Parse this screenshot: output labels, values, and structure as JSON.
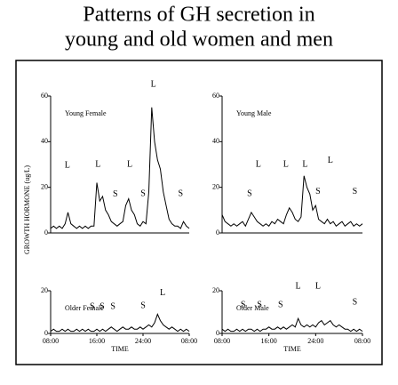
{
  "title_lines": [
    "Patterns of GH secretion in",
    "young and old women and men"
  ],
  "y_label": "GROWTH HORMONE (ug/L)",
  "chart_data": [
    {
      "type": "line",
      "title": "Young Female",
      "xlim": [
        8,
        32
      ],
      "ylim": [
        0,
        60
      ],
      "yticks": [
        0,
        20,
        40,
        60
      ],
      "x": [
        8,
        8.5,
        9,
        9.5,
        10,
        10.5,
        11,
        11.5,
        12,
        12.5,
        13,
        13.5,
        14,
        14.5,
        15,
        15.5,
        16,
        16.5,
        17,
        17.5,
        18,
        18.5,
        19,
        19.5,
        20,
        20.5,
        21,
        21.5,
        22,
        22.5,
        23,
        23.5,
        24,
        24.5,
        25,
        25.5,
        26,
        26.5,
        27,
        27.5,
        28,
        28.5,
        29,
        29.5,
        30,
        30.5,
        31,
        31.5,
        32
      ],
      "series": [
        {
          "color": "#000000",
          "values": [
            2,
            3,
            2,
            3,
            2,
            4,
            9,
            4,
            3,
            2,
            3,
            2,
            3,
            2,
            3,
            3,
            22,
            14,
            16,
            10,
            8,
            5,
            4,
            3,
            4,
            5,
            12,
            15,
            10,
            8,
            4,
            3,
            5,
            4,
            18,
            55,
            40,
            32,
            28,
            18,
            12,
            6,
            4,
            3,
            3,
            2,
            5,
            3,
            2
          ]
        }
      ],
      "annotations": [
        {
          "text": "L",
          "x": 10.9,
          "y": 29.6
        },
        {
          "text": "L",
          "x": 16.2,
          "y": 30
        },
        {
          "text": "S",
          "x": 19.2,
          "y": 16.8
        },
        {
          "text": "L",
          "x": 21.7,
          "y": 30
        },
        {
          "text": "S",
          "x": 24,
          "y": 17
        },
        {
          "text": "L",
          "x": 25.8,
          "y": 65
        },
        {
          "text": "S",
          "x": 30.5,
          "y": 17
        }
      ]
    },
    {
      "type": "line",
      "title": "Young Male",
      "xlim": [
        8,
        32
      ],
      "ylim": [
        0,
        60
      ],
      "yticks": [
        0,
        20,
        40,
        60
      ],
      "x": [
        8,
        8.5,
        9,
        9.5,
        10,
        10.5,
        11,
        11.5,
        12,
        12.5,
        13,
        13.5,
        14,
        14.5,
        15,
        15.5,
        16,
        16.5,
        17,
        17.5,
        18,
        18.5,
        19,
        19.5,
        20,
        20.5,
        21,
        21.5,
        22,
        22.5,
        23,
        23.5,
        24,
        24.5,
        25,
        25.5,
        26,
        26.5,
        27,
        27.5,
        28,
        28.5,
        29,
        29.5,
        30,
        30.5,
        31,
        31.5,
        32
      ],
      "series": [
        {
          "color": "#000000",
          "values": [
            8,
            5,
            4,
            3,
            4,
            3,
            4,
            5,
            3,
            6,
            9,
            7,
            5,
            4,
            3,
            4,
            3,
            5,
            4,
            6,
            5,
            4,
            8,
            11,
            9,
            6,
            5,
            7,
            25,
            20,
            17,
            10,
            12,
            6,
            5,
            4,
            6,
            4,
            5,
            3,
            4,
            5,
            3,
            4,
            5,
            3,
            4,
            3,
            4
          ]
        }
      ],
      "annotations": [
        {
          "text": "S",
          "x": 12.7,
          "y": 17
        },
        {
          "text": "L",
          "x": 14.2,
          "y": 30
        },
        {
          "text": "L",
          "x": 18.9,
          "y": 30
        },
        {
          "text": "L",
          "x": 22.2,
          "y": 30
        },
        {
          "text": "S",
          "x": 24.4,
          "y": 18
        },
        {
          "text": "L",
          "x": 26.5,
          "y": 31.6
        },
        {
          "text": "S",
          "x": 30.7,
          "y": 18
        }
      ]
    },
    {
      "type": "line",
      "title": "Older Female",
      "xlim": [
        8,
        32
      ],
      "ylim": [
        0,
        20
      ],
      "yticks": [
        0,
        20
      ],
      "xticks": [
        {
          "value": 8,
          "label": "08:00"
        },
        {
          "value": 16,
          "label": "16:00"
        },
        {
          "value": 24,
          "label": "24:00"
        },
        {
          "value": 32,
          "label": "08:00"
        }
      ],
      "x_label": "TIME",
      "x": [
        8,
        8.5,
        9,
        9.5,
        10,
        10.5,
        11,
        11.5,
        12,
        12.5,
        13,
        13.5,
        14,
        14.5,
        15,
        15.5,
        16,
        16.5,
        17,
        17.5,
        18,
        18.5,
        19,
        19.5,
        20,
        20.5,
        21,
        21.5,
        22,
        22.5,
        23,
        23.5,
        24,
        24.5,
        25,
        25.5,
        26,
        26.5,
        27,
        27.5,
        28,
        28.5,
        29,
        29.5,
        30,
        30.5,
        31,
        31.5,
        32
      ],
      "series": [
        {
          "color": "#000000",
          "values": [
            1,
            2,
            1,
            1,
            2,
            1,
            2,
            1,
            1,
            2,
            1,
            2,
            1,
            2,
            1,
            1,
            2,
            1,
            2,
            1,
            2,
            3,
            2,
            1,
            2,
            3,
            2,
            2,
            3,
            2,
            2,
            3,
            2,
            3,
            4,
            3,
            5,
            9,
            6,
            4,
            3,
            2,
            3,
            2,
            1,
            2,
            1,
            2,
            1
          ]
        }
      ],
      "annotations": [
        {
          "text": "S",
          "x": 15.2,
          "y": 12.5
        },
        {
          "text": "S",
          "x": 16.9,
          "y": 12.5
        },
        {
          "text": "S",
          "x": 18.8,
          "y": 12.5
        },
        {
          "text": "S",
          "x": 24,
          "y": 12.9
        },
        {
          "text": "L",
          "x": 27.4,
          "y": 18.8
        }
      ]
    },
    {
      "type": "line",
      "title": "Older Male",
      "xlim": [
        8,
        32
      ],
      "ylim": [
        0,
        20
      ],
      "yticks": [
        0,
        20
      ],
      "xticks": [
        {
          "value": 8,
          "label": "08:00"
        },
        {
          "value": 16,
          "label": "16:00"
        },
        {
          "value": 24,
          "label": "24:00"
        },
        {
          "value": 32,
          "label": "08:00"
        }
      ],
      "x_label": "TIME",
      "x": [
        8,
        8.5,
        9,
        9.5,
        10,
        10.5,
        11,
        11.5,
        12,
        12.5,
        13,
        13.5,
        14,
        14.5,
        15,
        15.5,
        16,
        16.5,
        17,
        17.5,
        18,
        18.5,
        19,
        19.5,
        20,
        20.5,
        21,
        21.5,
        22,
        22.5,
        23,
        23.5,
        24,
        24.5,
        25,
        25.5,
        26,
        26.5,
        27,
        27.5,
        28,
        28.5,
        29,
        29.5,
        30,
        30.5,
        31,
        31.5,
        32
      ],
      "series": [
        {
          "color": "#000000",
          "values": [
            2,
            1,
            2,
            1,
            1,
            2,
            1,
            2,
            1,
            2,
            2,
            1,
            2,
            1,
            2,
            2,
            3,
            2,
            2,
            3,
            2,
            3,
            2,
            3,
            4,
            3,
            7,
            4,
            3,
            4,
            3,
            4,
            3,
            5,
            6,
            4,
            5,
            6,
            4,
            3,
            4,
            3,
            2,
            2,
            1,
            2,
            1,
            2,
            1
          ]
        }
      ],
      "annotations": [
        {
          "text": "S",
          "x": 11.6,
          "y": 13.3
        },
        {
          "text": "S",
          "x": 14.4,
          "y": 13.3
        },
        {
          "text": "S",
          "x": 18,
          "y": 13.3
        },
        {
          "text": "L",
          "x": 21,
          "y": 22
        },
        {
          "text": "L",
          "x": 24.4,
          "y": 22
        },
        {
          "text": "S",
          "x": 30.7,
          "y": 14.6
        }
      ]
    }
  ]
}
